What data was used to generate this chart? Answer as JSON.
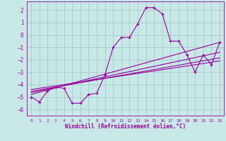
{
  "xlabel": "Windchill (Refroidissement éolien,°C)",
  "background_color": "#c8e8e8",
  "grid_color": "#a8c8c8",
  "line_color": "#990099",
  "xlim": [
    -0.5,
    23.5
  ],
  "ylim": [
    -6.5,
    2.7
  ],
  "yticks": [
    -6,
    -5,
    -4,
    -3,
    -2,
    -1,
    0,
    1,
    2
  ],
  "xticks": [
    0,
    1,
    2,
    3,
    4,
    5,
    6,
    7,
    8,
    9,
    10,
    11,
    12,
    13,
    14,
    15,
    16,
    17,
    18,
    19,
    20,
    21,
    22,
    23
  ],
  "main_x": [
    0,
    1,
    2,
    3,
    4,
    5,
    6,
    7,
    8,
    9,
    10,
    11,
    12,
    13,
    14,
    15,
    16,
    17,
    18,
    19,
    20,
    21,
    22,
    23
  ],
  "main_y": [
    -5.0,
    -5.4,
    -4.5,
    -4.2,
    -4.3,
    -5.5,
    -5.5,
    -4.8,
    -4.7,
    -3.2,
    -1.0,
    -0.2,
    -0.2,
    0.9,
    2.2,
    2.2,
    1.7,
    -0.5,
    -0.5,
    -1.6,
    -3.0,
    -1.6,
    -2.4,
    -0.6
  ],
  "line1_x": [
    0,
    23
  ],
  "line1_y": [
    -4.8,
    -0.6
  ],
  "line2_x": [
    0,
    23
  ],
  "line2_y": [
    -4.65,
    -1.4
  ],
  "line3_x": [
    0,
    23
  ],
  "line3_y": [
    -4.55,
    -1.85
  ],
  "line4_x": [
    0,
    23
  ],
  "line4_y": [
    -4.4,
    -2.1
  ]
}
